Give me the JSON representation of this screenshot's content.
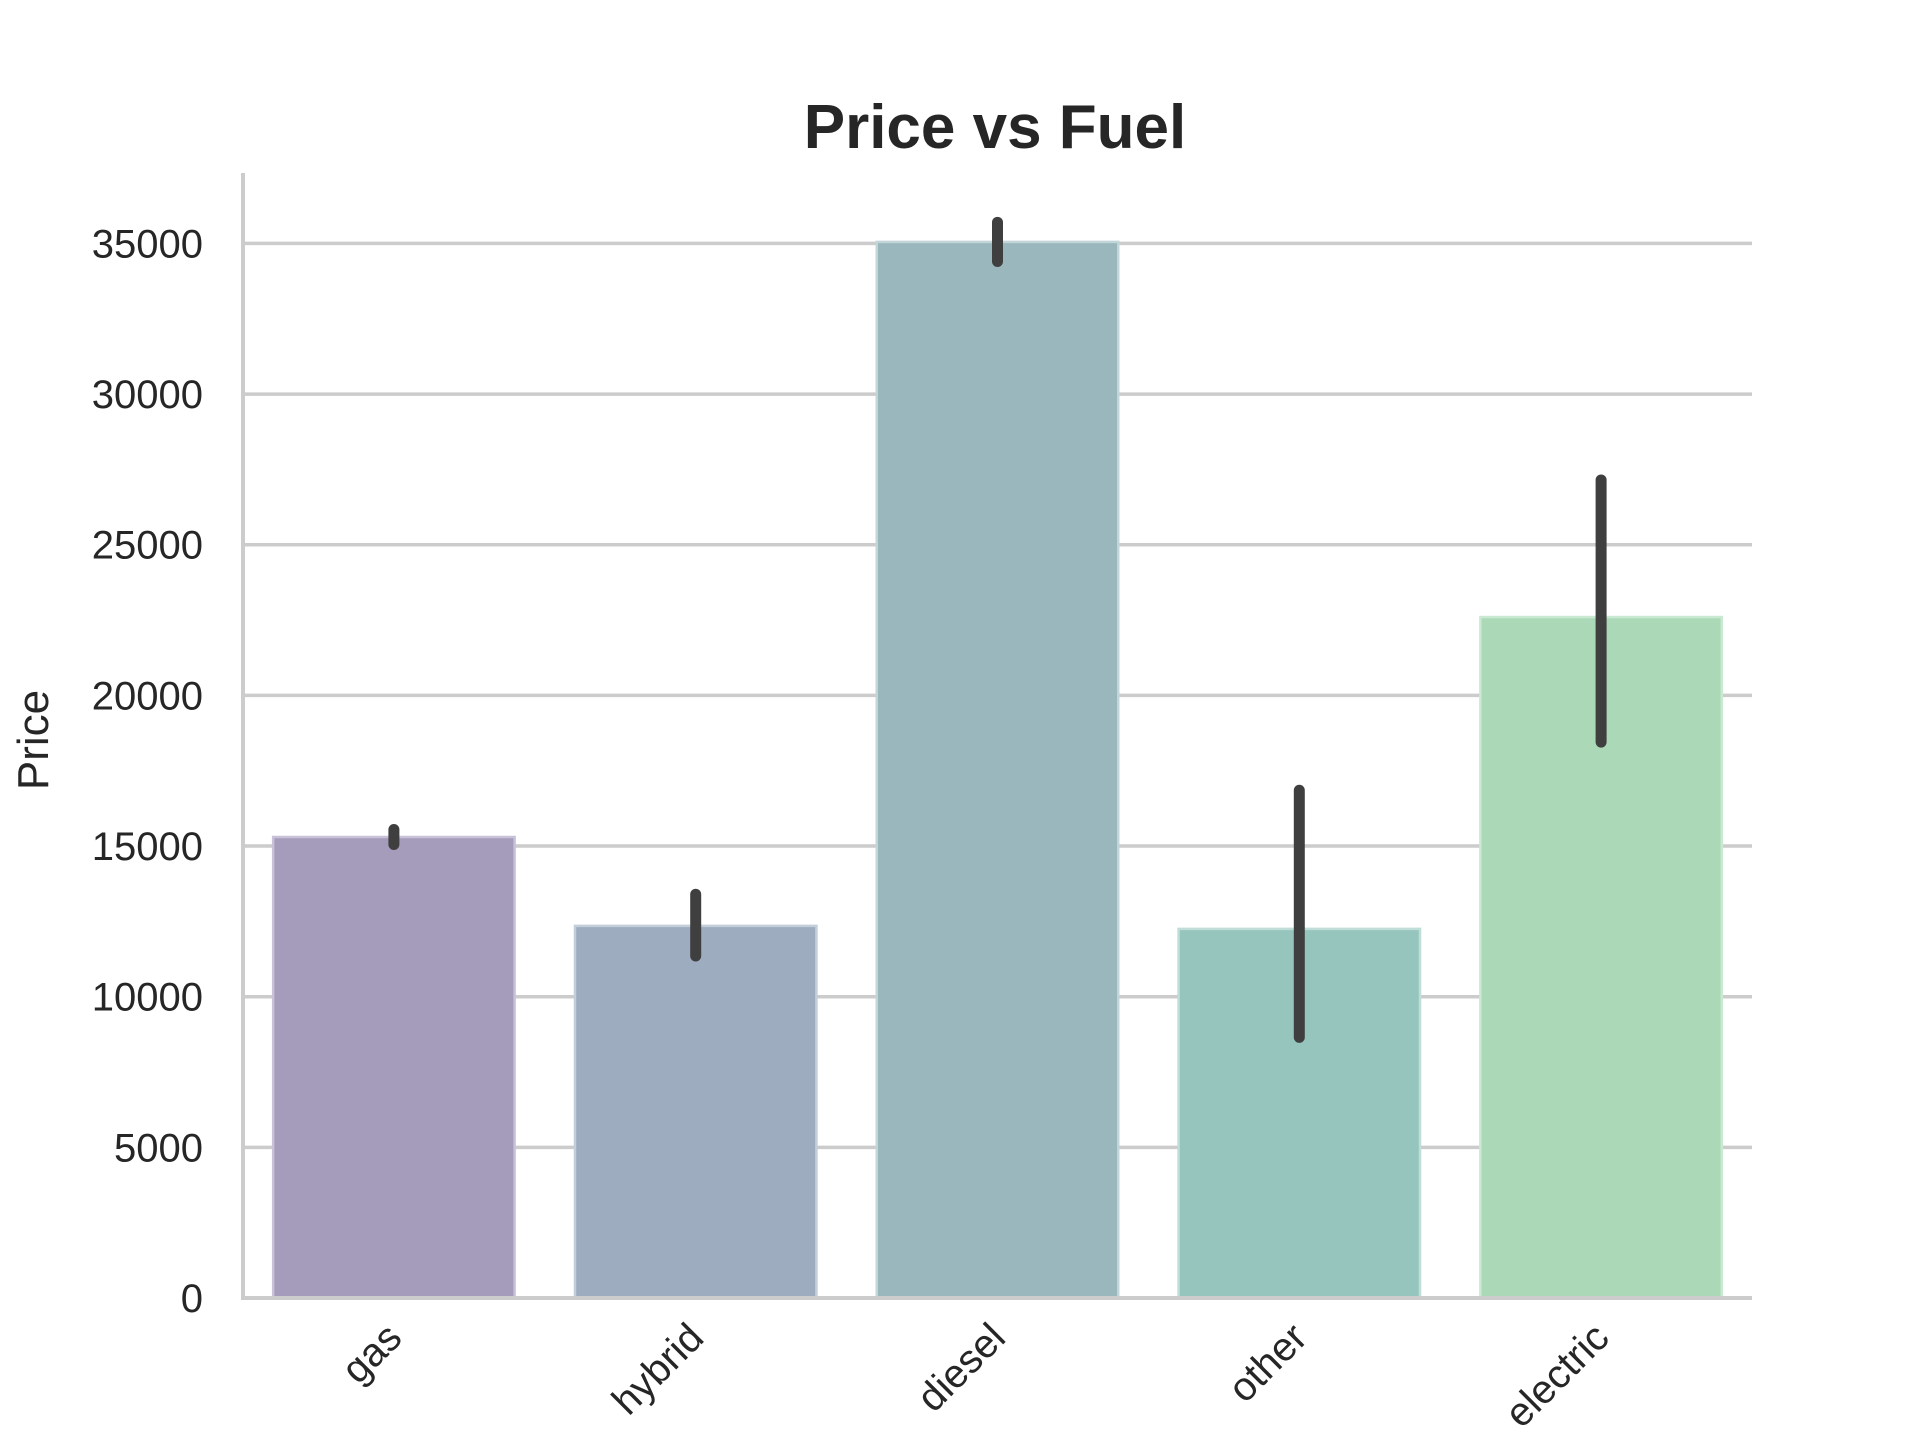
{
  "chart_data": {
    "type": "bar",
    "title": "Price vs Fuel",
    "xlabel": "",
    "ylabel": "Price",
    "categories": [
      "gas",
      "hybrid",
      "diesel",
      "other",
      "electric"
    ],
    "values": [
      15300,
      12350,
      35050,
      12250,
      22600
    ],
    "error_low": [
      15050,
      11350,
      34400,
      8650,
      18450
    ],
    "error_high": [
      15550,
      13400,
      35700,
      16850,
      27150
    ],
    "ylim": [
      0,
      37500
    ],
    "yticks": [
      0,
      5000,
      10000,
      15000,
      20000,
      25000,
      30000,
      35000
    ],
    "grid": true,
    "legend": "none",
    "colors": [
      "#a59bbb",
      "#9eacbf",
      "#99b7bc",
      "#96c5be",
      "#abd8b6"
    ],
    "edge_colors": [
      "#c8c2d8",
      "#c4cedb",
      "#c2d5d8",
      "#c0ddd8",
      "#cae9d2"
    ]
  }
}
